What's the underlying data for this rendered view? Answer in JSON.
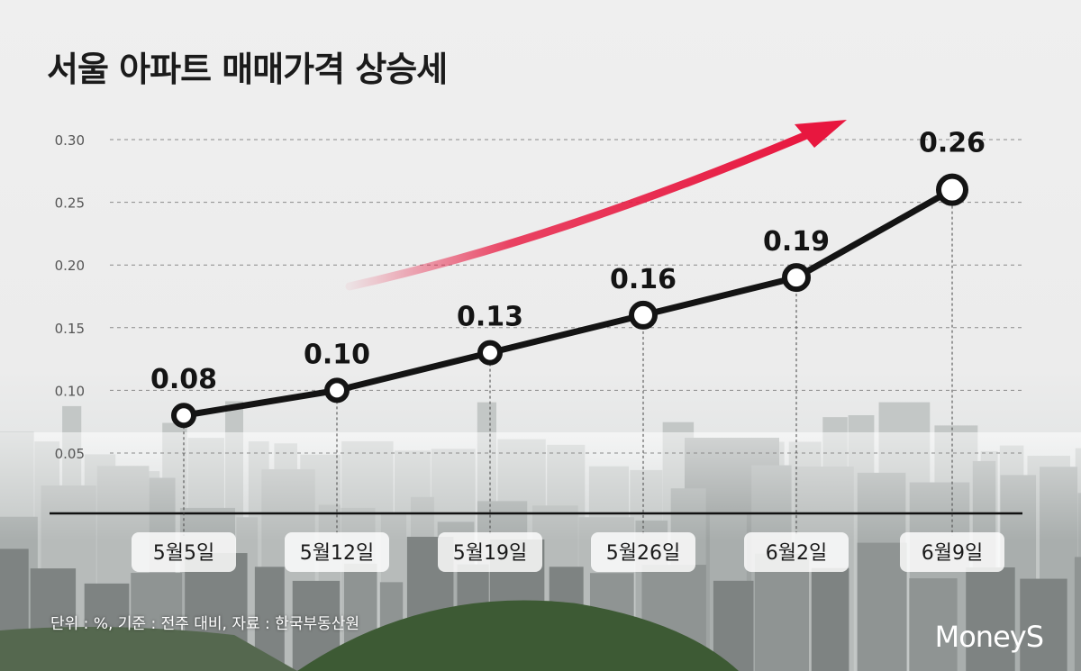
{
  "title": "서울 아파트 매매가격 상승세",
  "source_note": "단위 : %, 기준 : 전주 대비, 자료 : 한국부동산원",
  "logo": "MoneyS",
  "colors": {
    "arrow": "#e8173f",
    "line": "#141414",
    "background": "#efefef"
  },
  "chart_data": {
    "type": "line",
    "title": "서울 아파트 매매가격 상승세",
    "categories": [
      "5월5일",
      "5월12일",
      "5월19일",
      "5월26일",
      "6월2일",
      "6월9일"
    ],
    "data_labels": [
      "0.08",
      "0.10",
      "0.13",
      "0.16",
      "0.19",
      "0.26"
    ],
    "series": [
      {
        "values": [
          0.08,
          0.1,
          0.13,
          0.16,
          0.19,
          0.26
        ]
      }
    ],
    "yticks": [
      "0.05",
      "0.10",
      "0.15",
      "0.20",
      "0.25",
      "0.30"
    ],
    "ylim": [
      0,
      0.3
    ],
    "grid": true,
    "annotation": "rising trend arrow"
  }
}
